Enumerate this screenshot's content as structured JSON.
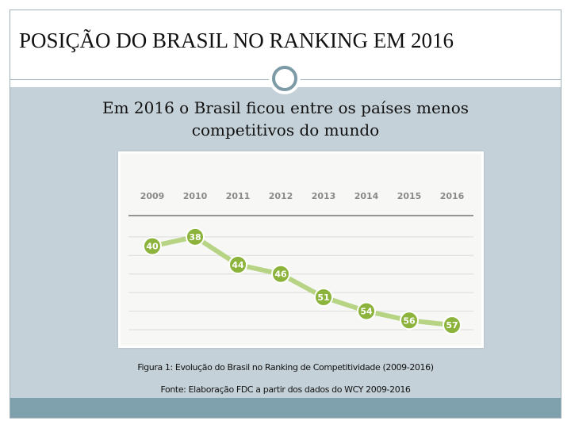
{
  "slide": {
    "title": "POSIÇÃO DO BRASIL NO RANKING EM 2016",
    "subtitle_line1": "Em 2016 o Brasil ficou entre os países menos",
    "subtitle_line2": "competitivos do mundo",
    "figure_caption": "Figura 1: Evolução do Brasil no Ranking de Competitividade (2009-2016)",
    "source_caption": "Fonte: Elaboração FDC a partir dos dados do WCY 2009-2016"
  },
  "colors": {
    "content_bg": "#c5d1d8",
    "accent": "#7fa1ad",
    "line_color": "#b7d485",
    "marker_color": "#8cb33c"
  },
  "chart_data": {
    "type": "line",
    "title": "",
    "xlabel": "",
    "ylabel": "",
    "categories": [
      "2009",
      "2010",
      "2011",
      "2012",
      "2013",
      "2014",
      "2015",
      "2016"
    ],
    "values": [
      40,
      38,
      44,
      46,
      51,
      54,
      56,
      57
    ],
    "data_labels": [
      "40",
      "38",
      "44",
      "46",
      "51",
      "54",
      "56",
      "57"
    ],
    "y_inverted": true,
    "ylim": [
      30,
      58
    ],
    "grid": true,
    "legend": "none"
  }
}
